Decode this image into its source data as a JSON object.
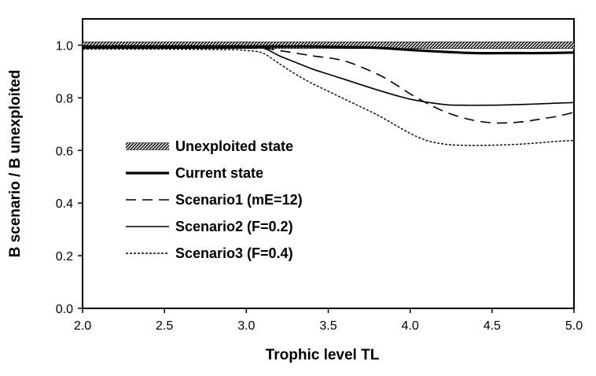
{
  "chart_data": {
    "type": "line",
    "title": "",
    "xlabel": "Trophic level TL",
    "ylabel": "B scenario / B unexploited",
    "xlim": [
      2.0,
      5.0
    ],
    "ylim": [
      0.0,
      1.1
    ],
    "x_ticks": [
      "2.0",
      "2.5",
      "3.0",
      "3.5",
      "4.0",
      "4.5",
      "5.0"
    ],
    "y_ticks": [
      "0.0",
      "0.2",
      "0.4",
      "0.6",
      "0.8",
      "1.0"
    ],
    "grid": false,
    "legend_position": "left-center",
    "series": [
      {
        "name": "Unexploited state",
        "style": "thick-hatched",
        "color": "#000000",
        "x": [
          2.0,
          2.5,
          3.0,
          3.5,
          4.0,
          4.5,
          5.0
        ],
        "y": [
          1.0,
          1.0,
          1.0,
          1.0,
          1.0,
          1.0,
          1.0
        ]
      },
      {
        "name": "Current state",
        "style": "thick-solid",
        "color": "#000000",
        "x": [
          2.0,
          2.5,
          3.0,
          3.1,
          3.2,
          3.4,
          3.6,
          3.8,
          4.0,
          4.2,
          4.4,
          4.6,
          4.8,
          5.0
        ],
        "y": [
          0.995,
          0.995,
          0.995,
          0.995,
          0.995,
          0.995,
          0.993,
          0.99,
          0.982,
          0.975,
          0.97,
          0.97,
          0.97,
          0.972
        ]
      },
      {
        "name": "Scenario1 (mE=12)",
        "style": "dashed",
        "color": "#000000",
        "x": [
          2.0,
          2.5,
          3.0,
          3.1,
          3.2,
          3.4,
          3.6,
          3.8,
          3.9,
          4.0,
          4.1,
          4.2,
          4.3,
          4.4,
          4.5,
          4.6,
          4.7,
          4.8,
          4.9,
          5.0
        ],
        "y": [
          0.99,
          0.99,
          0.99,
          0.99,
          0.98,
          0.96,
          0.94,
          0.89,
          0.855,
          0.815,
          0.78,
          0.75,
          0.728,
          0.713,
          0.705,
          0.705,
          0.71,
          0.72,
          0.73,
          0.745
        ]
      },
      {
        "name": "Scenario2 (F=0.2)",
        "style": "solid",
        "color": "#000000",
        "x": [
          2.0,
          2.5,
          3.0,
          3.1,
          3.2,
          3.3,
          3.4,
          3.5,
          3.6,
          3.8,
          4.0,
          4.2,
          4.3,
          4.5,
          4.7,
          4.9,
          5.0
        ],
        "y": [
          0.99,
          0.99,
          0.99,
          0.99,
          0.96,
          0.935,
          0.91,
          0.89,
          0.87,
          0.83,
          0.795,
          0.775,
          0.772,
          0.772,
          0.775,
          0.78,
          0.782
        ]
      },
      {
        "name": "Scenario3 (F=0.4)",
        "style": "dotted",
        "color": "#000000",
        "x": [
          2.0,
          2.5,
          2.9,
          3.0,
          3.1,
          3.2,
          3.3,
          3.4,
          3.5,
          3.6,
          3.7,
          3.8,
          3.9,
          4.0,
          4.1,
          4.2,
          4.3,
          4.5,
          4.7,
          4.9,
          5.0
        ],
        "y": [
          0.985,
          0.985,
          0.983,
          0.98,
          0.97,
          0.93,
          0.89,
          0.855,
          0.825,
          0.795,
          0.765,
          0.735,
          0.7,
          0.665,
          0.638,
          0.625,
          0.62,
          0.62,
          0.625,
          0.635,
          0.638
        ]
      }
    ]
  }
}
